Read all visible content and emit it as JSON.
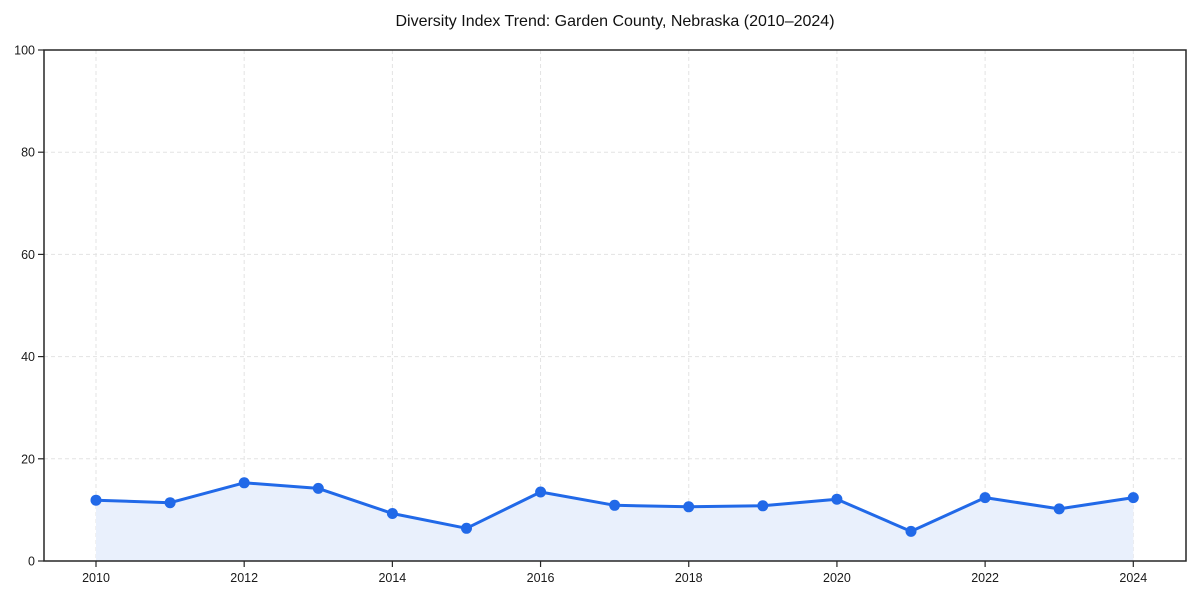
{
  "chart_data": {
    "type": "area",
    "title": "Diversity Index Trend: Garden County, Nebraska (2010–2024)",
    "x": [
      2010,
      2011,
      2012,
      2013,
      2014,
      2015,
      2016,
      2017,
      2018,
      2019,
      2020,
      2021,
      2022,
      2023,
      2024
    ],
    "values": [
      11.9,
      11.4,
      15.3,
      14.2,
      9.3,
      6.4,
      13.5,
      10.9,
      10.6,
      10.8,
      12.1,
      5.8,
      12.4,
      10.2,
      12.4
    ],
    "xlabel": "",
    "ylabel": "",
    "ylim": [
      0,
      100
    ],
    "yticks": [
      0,
      20,
      40,
      60,
      80,
      100
    ],
    "xticks": [
      2010,
      2012,
      2014,
      2016,
      2018,
      2020,
      2022,
      2024
    ],
    "grid": true,
    "legend": false,
    "marker": "circle",
    "colors": {
      "line": "#2169e8",
      "marker": "#2169e8",
      "fill": "#e9f0fc",
      "grid": "#e3e3e3",
      "spine": "#262626",
      "tick_label": "#1a1a1a",
      "title": "#111111",
      "background": "#ffffff"
    }
  }
}
